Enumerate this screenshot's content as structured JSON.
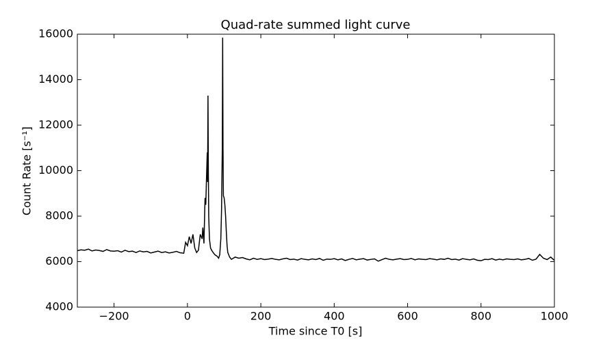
{
  "chart_data": {
    "type": "line",
    "title": "Quad-rate summed light curve",
    "x_label": "Time since T0 [s]",
    "y_label": "Count Rate [s⁻¹]",
    "xlim": [
      -300,
      1000
    ],
    "ylim": [
      4000,
      16000
    ],
    "xticks": [
      {
        "value": -200,
        "label": "−200"
      },
      0,
      200,
      400,
      600,
      800,
      1000
    ],
    "yticks": [
      4000,
      6000,
      8000,
      10000,
      12000,
      14000,
      16000
    ],
    "grid": false,
    "series": [
      {
        "color": "#000000",
        "x": [
          -300,
          -290,
          -280,
          -270,
          -260,
          -250,
          -240,
          -230,
          -220,
          -210,
          -200,
          -190,
          -180,
          -170,
          -160,
          -150,
          -140,
          -130,
          -120,
          -110,
          -100,
          -90,
          -80,
          -70,
          -60,
          -50,
          -40,
          -30,
          -20,
          -10,
          -5,
          0,
          5,
          10,
          15,
          20,
          25,
          30,
          35,
          40,
          42,
          45,
          48,
          50,
          52,
          54,
          55,
          56,
          57,
          58,
          60,
          63,
          66,
          70,
          75,
          80,
          85,
          88,
          91,
          93,
          95,
          96,
          97,
          98,
          100,
          102,
          104,
          106,
          108,
          110,
          115,
          120,
          130,
          140,
          150,
          160,
          170,
          180,
          190,
          200,
          210,
          220,
          230,
          240,
          250,
          260,
          270,
          280,
          290,
          300,
          310,
          320,
          330,
          340,
          350,
          360,
          370,
          380,
          390,
          400,
          410,
          420,
          430,
          440,
          450,
          460,
          470,
          480,
          490,
          500,
          510,
          520,
          530,
          540,
          550,
          560,
          570,
          580,
          590,
          600,
          610,
          620,
          630,
          640,
          650,
          660,
          670,
          680,
          690,
          700,
          710,
          720,
          730,
          740,
          750,
          760,
          770,
          780,
          790,
          800,
          810,
          820,
          830,
          840,
          850,
          860,
          870,
          880,
          890,
          900,
          910,
          920,
          930,
          940,
          950,
          960,
          970,
          980,
          990,
          1000
        ],
        "values": [
          6480,
          6520,
          6500,
          6550,
          6470,
          6510,
          6490,
          6450,
          6530,
          6470,
          6460,
          6480,
          6420,
          6500,
          6440,
          6460,
          6400,
          6470,
          6430,
          6450,
          6380,
          6420,
          6460,
          6400,
          6430,
          6380,
          6410,
          6450,
          6390,
          6370,
          6850,
          6700,
          7100,
          6800,
          7200,
          6600,
          6400,
          6500,
          7200,
          7000,
          7500,
          6800,
          8800,
          8500,
          9700,
          10800,
          9500,
          13300,
          10000,
          8000,
          7000,
          6600,
          6500,
          6400,
          6300,
          6250,
          6150,
          6300,
          7000,
          8300,
          11000,
          15850,
          11000,
          8900,
          8800,
          8500,
          8000,
          7300,
          6700,
          6400,
          6200,
          6100,
          6200,
          6150,
          6180,
          6120,
          6080,
          6150,
          6100,
          6130,
          6090,
          6110,
          6140,
          6100,
          6080,
          6120,
          6150,
          6090,
          6110,
          6070,
          6130,
          6100,
          6080,
          6120,
          6090,
          6140,
          6060,
          6110,
          6100,
          6130,
          6080,
          6120,
          6050,
          6100,
          6140,
          6080,
          6110,
          6130,
          6070,
          6100,
          6120,
          6020,
          6090,
          6150,
          6100,
          6080,
          6110,
          6130,
          6090,
          6100,
          6140,
          6080,
          6120,
          6100,
          6090,
          6130,
          6110,
          6080,
          6120,
          6100,
          6150,
          6090,
          6110,
          6070,
          6130,
          6100,
          6080,
          6120,
          6060,
          6040,
          6100,
          6090,
          6130,
          6070,
          6110,
          6080,
          6120,
          6100,
          6090,
          6120,
          6080,
          6100,
          6140,
          6060,
          6110,
          6320,
          6150,
          6090,
          6200,
          6050
        ]
      }
    ]
  }
}
